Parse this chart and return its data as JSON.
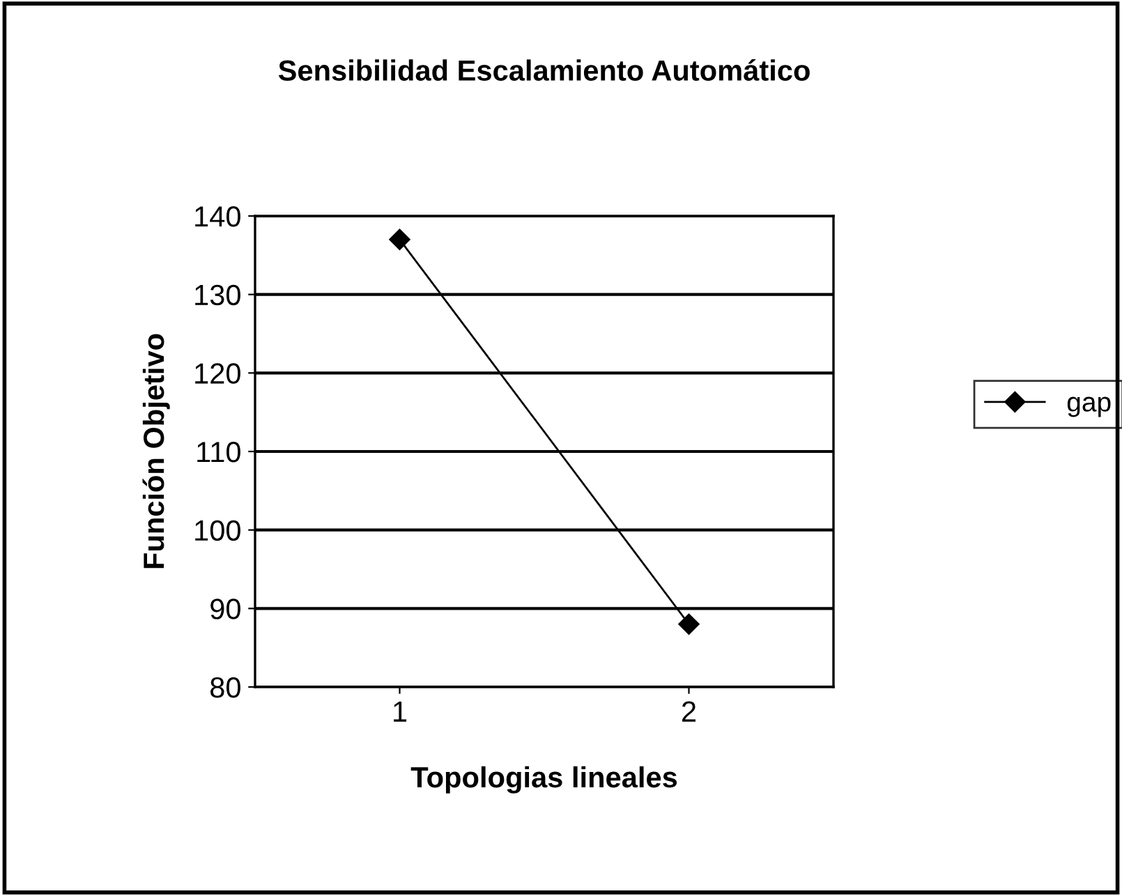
{
  "chart_data": {
    "type": "line",
    "title": "Sensibilidad Escalamiento Automático",
    "xlabel": "Topologias lineales",
    "ylabel": "Función Objetivo",
    "categories": [
      "1",
      "2"
    ],
    "series": [
      {
        "name": "gap",
        "color": "#000000",
        "values": [
          137,
          88
        ]
      }
    ],
    "ylim": [
      80,
      140
    ],
    "yticks": [
      80,
      90,
      100,
      110,
      120,
      130,
      140
    ],
    "grid": "y",
    "legend": "right",
    "marker": "diamond",
    "line_style": "solid"
  }
}
